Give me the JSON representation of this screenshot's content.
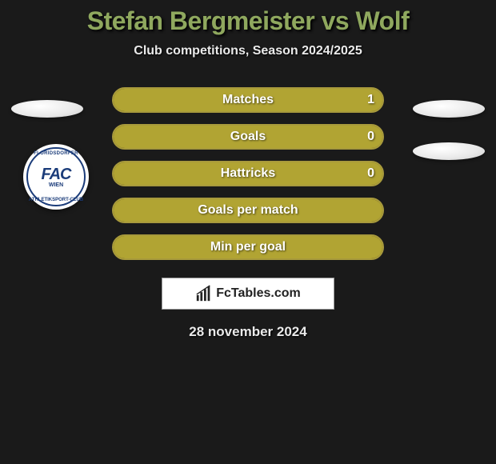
{
  "title": "Stefan Bergmeister vs Wolf",
  "subtitle": "Club competitions, Season 2024/2025",
  "colors": {
    "title_color": "#8fa85e",
    "bar_border": "#a89a3c",
    "bar_bg": "#736818",
    "bar_fill": "#b1a433",
    "page_bg": "#1a1a1a",
    "badge_blue": "#1b3c7a"
  },
  "bars": [
    {
      "label": "Matches",
      "right_value": "1",
      "fill_pct": 100
    },
    {
      "label": "Goals",
      "right_value": "0",
      "fill_pct": 100
    },
    {
      "label": "Hattricks",
      "right_value": "0",
      "fill_pct": 100
    },
    {
      "label": "Goals per match",
      "right_value": "",
      "fill_pct": 100,
      "full": true
    },
    {
      "label": "Min per goal",
      "right_value": "",
      "fill_pct": 100,
      "full": true
    }
  ],
  "badge": {
    "ring_top": "FLORIDSDORFER",
    "main": "FAC",
    "sub": "WIEN",
    "ring_bottom": "ATHLETIKSPORT-CLUB"
  },
  "brand": {
    "text": "FcTables.com"
  },
  "date": "28 november 2024"
}
